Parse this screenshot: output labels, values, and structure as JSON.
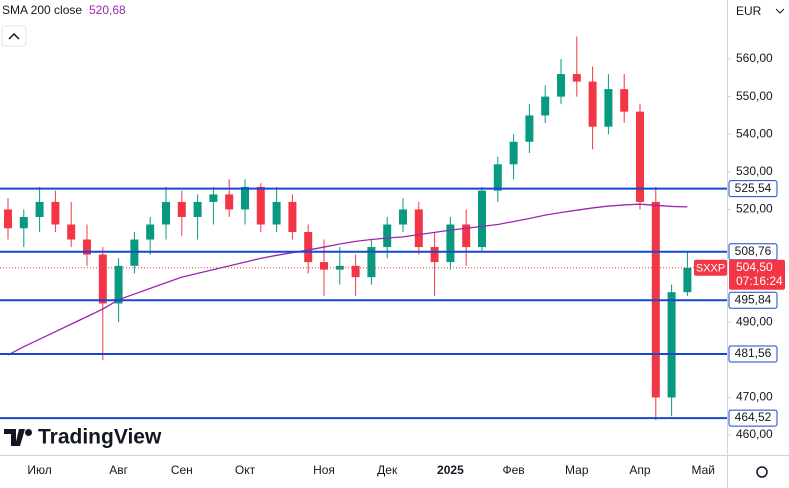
{
  "chart_data": {
    "type": "candlestick",
    "indicator": {
      "name": "SMA 200 close",
      "value": {
        "value": 520.68,
        "label": "520,68"
      },
      "color": "#9c27b0"
    },
    "currency": "EUR",
    "brand": "TradingView",
    "categories": [
      null,
      null,
      "Июл",
      null,
      null,
      null,
      null,
      "Авг",
      null,
      null,
      null,
      "Сен",
      null,
      null,
      null,
      "Окт",
      null,
      null,
      null,
      null,
      "Ноя",
      null,
      null,
      null,
      "Дек",
      null,
      null,
      null,
      "2025",
      null,
      null,
      null,
      "Фев",
      null,
      null,
      null,
      "Мар",
      null,
      null,
      null,
      "Апр",
      null,
      null,
      null,
      "Май"
    ],
    "open": [
      520,
      515,
      518,
      522,
      516,
      512,
      508,
      495,
      505,
      512,
      516,
      522,
      518,
      522,
      524,
      520,
      526,
      516,
      522,
      514,
      506,
      504,
      505,
      502,
      510,
      516,
      520,
      510,
      506,
      516,
      510,
      525,
      532,
      538,
      545,
      550,
      556,
      554,
      542,
      552,
      546,
      522,
      470,
      498,
      null
    ],
    "high": [
      523,
      520,
      526,
      525,
      522,
      516,
      510,
      507,
      514,
      518,
      526,
      525,
      524,
      526,
      528,
      528,
      527,
      526,
      524,
      516,
      512,
      510,
      508,
      512,
      518,
      523,
      522,
      514,
      518,
      520,
      526,
      534,
      540,
      548,
      553,
      560,
      566,
      558,
      556,
      556,
      548,
      526,
      500,
      509,
      null
    ],
    "low": [
      512,
      510,
      514,
      514,
      510,
      505,
      480,
      490,
      503,
      508,
      512,
      513,
      512,
      516,
      518,
      516,
      514,
      514,
      512,
      503,
      497,
      500,
      497,
      500,
      507,
      514,
      508,
      497,
      504,
      505,
      509,
      522,
      528,
      535,
      543,
      548,
      550,
      536,
      540,
      543,
      520,
      464,
      465,
      497,
      null
    ],
    "close": [
      515,
      518,
      522,
      516,
      512,
      508,
      495,
      505,
      512,
      516,
      522,
      518,
      522,
      524,
      520,
      526,
      516,
      522,
      514,
      506,
      504,
      505,
      502,
      510,
      516,
      520,
      510,
      506,
      516,
      510,
      525,
      532,
      538,
      545,
      550,
      556,
      554,
      542,
      552,
      546,
      522,
      470,
      498,
      504.5,
      null
    ],
    "up_color": "#089981",
    "down_color": "#f23645",
    "sma": [
      481.3,
      483.5,
      485.5,
      487.5,
      489.5,
      491.5,
      493.5,
      496,
      497.5,
      499,
      500.5,
      502,
      503,
      504,
      505,
      506,
      507,
      507.8,
      508.5,
      509.2,
      510,
      510.8,
      511.5,
      512,
      512.4,
      512.7,
      513.3,
      513.9,
      514.5,
      515,
      515.5,
      516,
      516.8,
      517.6,
      518.5,
      519.2,
      519.8,
      520.4,
      520.9,
      521.2,
      521.4,
      521.1,
      520.8,
      520.68,
      null
    ],
    "levels": [
      {
        "value": 525.54,
        "label": "525,54"
      },
      {
        "value": 508.76,
        "label": "508,76"
      },
      {
        "value": 495.84,
        "label": "495,84"
      },
      {
        "value": 481.56,
        "label": "481,56"
      },
      {
        "value": 464.52,
        "label": "464,52"
      }
    ],
    "level_color": "#1848cc",
    "last_price": {
      "value": 504.5,
      "label": "504,50",
      "symbol": "SXXP",
      "countdown": "07:16:24"
    },
    "ylim": [
      454.7,
      575.7
    ],
    "yticks": [
      {
        "value": 460,
        "label": "460,00"
      },
      {
        "value": 470,
        "label": "470,00"
      },
      {
        "value": 490,
        "label": "490,00"
      },
      {
        "value": 520,
        "label": "520,00"
      },
      {
        "value": 530,
        "label": "530,00"
      },
      {
        "value": 540,
        "label": "540,00"
      },
      {
        "value": 550,
        "label": "550,00"
      },
      {
        "value": 560,
        "label": "560,00"
      }
    ]
  }
}
